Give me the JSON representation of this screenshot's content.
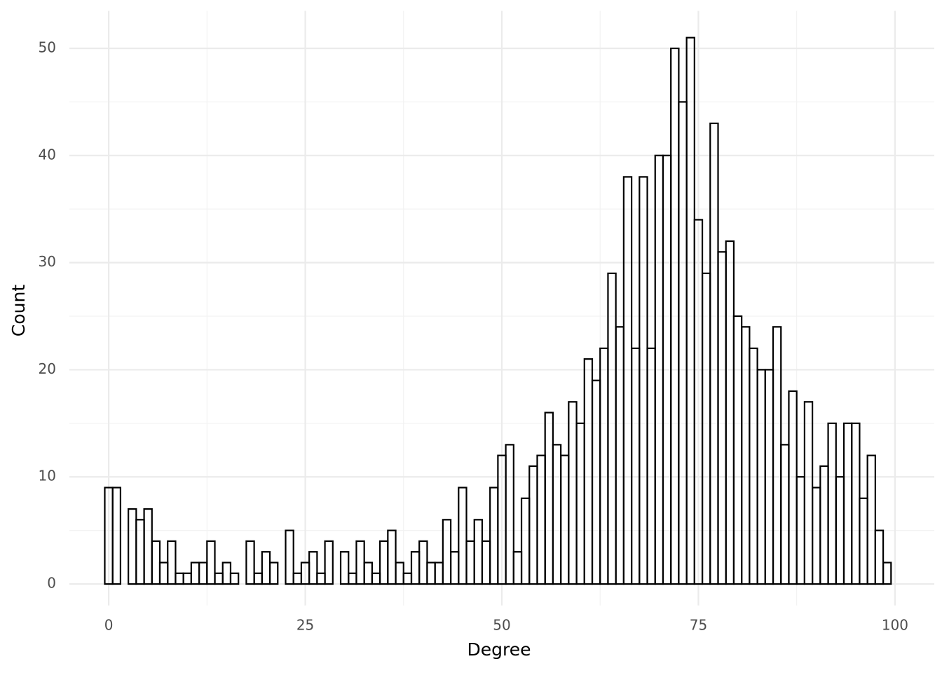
{
  "chart_data": {
    "type": "histogram",
    "x_label": "Degree",
    "y_label": "Count",
    "bins": [
      -0.5,
      0.5,
      1.5,
      2.5,
      3.5,
      4.5,
      5.5,
      6.5,
      7.5,
      8.5,
      9.5,
      10.5,
      11.5,
      12.5,
      13.5,
      14.5,
      15.5,
      16.5,
      17.5,
      18.5,
      19.5,
      20.5,
      21.5,
      22.5,
      23.5,
      24.5,
      25.5,
      26.5,
      27.5,
      28.5,
      29.5,
      30.5,
      31.5,
      32.5,
      33.5,
      34.5,
      35.5,
      36.5,
      37.5,
      38.5,
      39.5,
      40.5,
      41.5,
      42.5,
      43.5,
      44.5,
      45.5,
      46.5,
      47.5,
      48.5,
      49.5,
      50.5,
      51.5,
      52.5,
      53.5,
      54.5,
      55.5,
      56.5,
      57.5,
      58.5,
      59.5,
      60.5,
      61.5,
      62.5,
      63.5,
      64.5,
      65.5,
      66.5,
      67.5,
      68.5,
      69.5,
      70.5,
      71.5,
      72.5,
      73.5,
      74.5,
      75.5,
      76.5,
      77.5,
      78.5,
      79.5,
      80.5,
      81.5,
      82.5,
      83.5,
      84.5,
      85.5,
      86.5,
      87.5,
      88.5,
      89.5,
      90.5,
      91.5,
      92.5,
      93.5,
      94.5,
      95.5,
      96.5,
      97.5,
      98.5,
      99.5
    ],
    "values": [
      9,
      9,
      0,
      7,
      6,
      7,
      4,
      2,
      4,
      1,
      1,
      2,
      2,
      4,
      1,
      2,
      1,
      0,
      4,
      1,
      3,
      2,
      0,
      5,
      1,
      2,
      3,
      1,
      4,
      0,
      3,
      1,
      4,
      2,
      1,
      4,
      5,
      2,
      1,
      3,
      4,
      2,
      2,
      6,
      3,
      9,
      4,
      6,
      4,
      9,
      12,
      13,
      3,
      8,
      11,
      12,
      16,
      13,
      12,
      17,
      15,
      21,
      19,
      22,
      29,
      24,
      38,
      22,
      38,
      22,
      40,
      40,
      50,
      45,
      51,
      34,
      29,
      43,
      31,
      32,
      25,
      24,
      22,
      20,
      20,
      24,
      13,
      18,
      10,
      17,
      9,
      11,
      15,
      10,
      15,
      15,
      8,
      12,
      5,
      2
    ],
    "fill": "none",
    "color": "#000000",
    "xlim": [
      -5,
      105
    ],
    "ylim": [
      -2,
      53.5
    ],
    "xticks": [
      0,
      25,
      50,
      75,
      100
    ],
    "yticks": [
      0,
      10,
      20,
      30,
      40,
      50
    ],
    "xminor": [
      12.5,
      37.5,
      62.5,
      87.5
    ],
    "yminor": [
      5,
      15,
      25,
      35,
      45
    ],
    "grid": true
  }
}
